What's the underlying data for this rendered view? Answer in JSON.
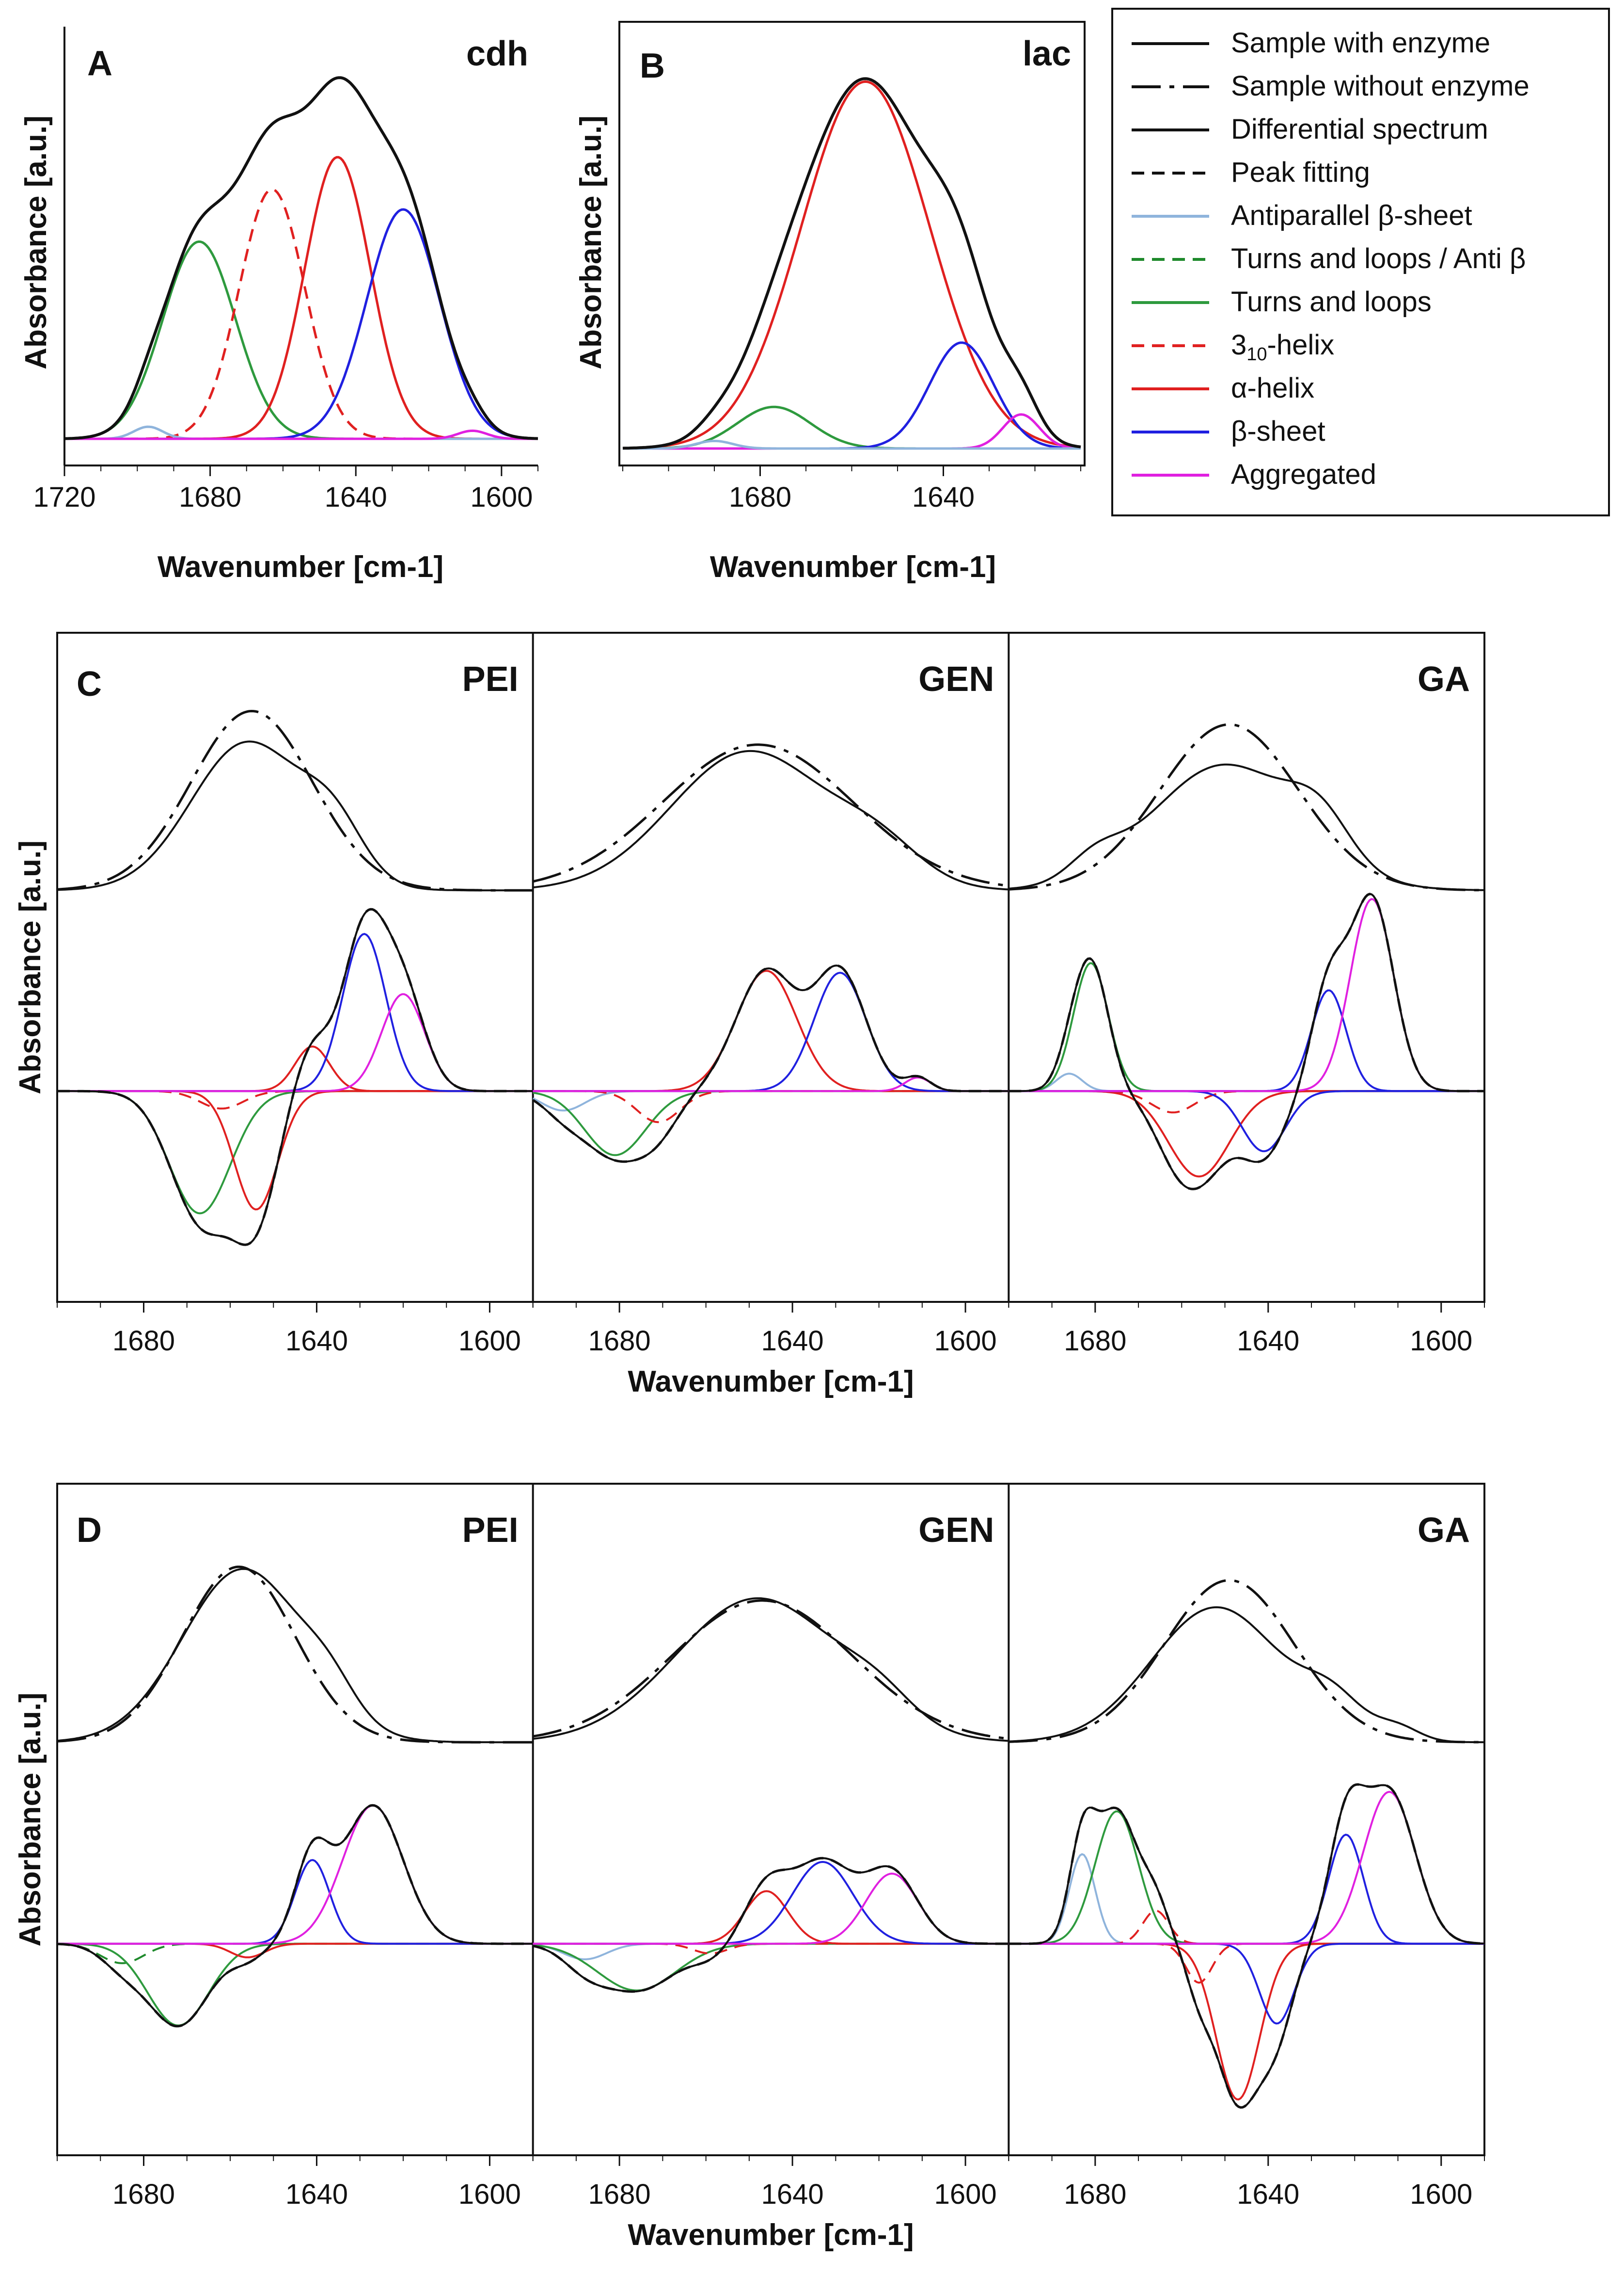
{
  "colors": {
    "antiparallel": "#8fb4dc",
    "turns_anti": "#1f8a2c",
    "turns": "#2e9a3e",
    "helix310": "#e02020",
    "alpha": "#e02020",
    "beta": "#2020e0",
    "aggregated": "#e020e0",
    "black": "#111111"
  },
  "legend": {
    "items": [
      {
        "label": "Sample with enzyme",
        "key": "sample_with",
        "color": "#111111",
        "dash": "solid"
      },
      {
        "label": "Sample without enzyme",
        "key": "sample_without",
        "color": "#111111",
        "dash": "longdash"
      },
      {
        "label": "Differential spectrum",
        "key": "differential",
        "color": "#111111",
        "dash": "solid"
      },
      {
        "label": "Peak fitting",
        "key": "fit",
        "color": "#111111",
        "dash": "dash"
      },
      {
        "label": "Antiparallel β-sheet",
        "key": "antiparallel",
        "color": "#8fb4dc",
        "dash": "solid"
      },
      {
        "label": "Turns and loops / Anti β",
        "key": "turns_anti",
        "color": "#1f8a2c",
        "dash": "dash"
      },
      {
        "label": "Turns and loops",
        "key": "turns",
        "color": "#2e9a3e",
        "dash": "solid"
      },
      {
        "label": "3",
        "sub": "10",
        "suffix": "-helix",
        "key": "helix310",
        "color": "#e02020",
        "dash": "dash"
      },
      {
        "label": "α-helix",
        "key": "alpha",
        "color": "#e02020",
        "dash": "solid"
      },
      {
        "label": "β-sheet",
        "key": "beta",
        "color": "#2020e0",
        "dash": "solid"
      },
      {
        "label": "Aggregated",
        "key": "aggregated",
        "color": "#e020e0",
        "dash": "solid"
      }
    ]
  },
  "chart_data": [
    {
      "panel": "A",
      "title": "cdh",
      "type": "line",
      "xlabel": "Wavenumber [cm-1]",
      "ylabel": "Absorbance [a.u.]",
      "xlim": [
        1720,
        1590
      ],
      "xticks": [
        1720,
        1680,
        1640,
        1600
      ],
      "series": [
        {
          "name": "Turns and loops",
          "key": "turns",
          "center": 1683,
          "height": 0.49,
          "width": 10
        },
        {
          "name": "3₁₀-helix",
          "key": "helix310",
          "center": 1663,
          "height": 0.62,
          "width": 9
        },
        {
          "name": "α-helix",
          "key": "alpha",
          "center": 1645,
          "height": 0.7,
          "width": 9
        },
        {
          "name": "β-sheet",
          "key": "beta",
          "center": 1627,
          "height": 0.57,
          "width": 10
        },
        {
          "name": "Antiparallel β-sheet",
          "key": "antiparallel",
          "center": 1697,
          "height": 0.03,
          "width": 4
        },
        {
          "name": "Aggregated",
          "key": "aggregated",
          "center": 1608,
          "height": 0.02,
          "width": 4
        }
      ]
    },
    {
      "panel": "B",
      "title": "lac",
      "type": "line",
      "xlabel": "Wavenumber [cm-1]",
      "ylabel": "Absorbance [a.u.]",
      "xlim": [
        1710,
        1610
      ],
      "xticks": [
        1680,
        1640
      ],
      "series": [
        {
          "name": "Turns and loops",
          "key": "turns",
          "center": 1677,
          "height": 0.11,
          "width": 8
        },
        {
          "name": "α-helix",
          "key": "alpha",
          "center": 1657,
          "height": 0.97,
          "width": 14
        },
        {
          "name": "β-sheet",
          "key": "beta",
          "center": 1636,
          "height": 0.28,
          "width": 7
        },
        {
          "name": "Aggregated",
          "key": "aggregated",
          "center": 1623,
          "height": 0.09,
          "width": 4
        },
        {
          "name": "Antiparallel β-sheet",
          "key": "antiparallel",
          "center": 1690,
          "height": 0.02,
          "width": 4
        }
      ]
    },
    {
      "panel": "C",
      "type": "line",
      "xlabel": "Wavenumber [cm-1]",
      "ylabel": "Absorbance [a.u.]",
      "xlim": [
        1700,
        1590
      ],
      "xticks": [
        1680,
        1640,
        1600
      ],
      "subpanels": [
        {
          "title": "PEI",
          "with_enzyme": [
            {
              "c": 1656,
              "h": 0.66,
              "w": 13
            },
            {
              "c": 1636,
              "h": 0.22,
              "w": 7
            }
          ],
          "without_enzyme": [
            {
              "c": 1655,
              "h": 0.8,
              "w": 14
            }
          ],
          "series": [
            {
              "name": "Turns and loops",
              "key": "turns",
              "center": 1667,
              "height": -0.63,
              "width": 7
            },
            {
              "name": "3₁₀-helix",
              "key": "helix310",
              "center": 1662,
              "height": -0.09,
              "width": 5
            },
            {
              "name": "α-helix",
              "key": "alpha",
              "center": 1641,
              "height": 0.23,
              "width": 4
            },
            {
              "name": "α-helix",
              "key": "alpha",
              "center": 1654,
              "height": -0.61,
              "width": 5
            },
            {
              "name": "β-sheet",
              "key": "beta",
              "center": 1629,
              "height": 0.81,
              "width": 5
            },
            {
              "name": "Aggregated",
              "key": "aggregated",
              "center": 1620,
              "height": 0.5,
              "width": 5
            }
          ]
        },
        {
          "title": "GEN",
          "with_enzyme": [
            {
              "c": 1650,
              "h": 0.62,
              "w": 18
            },
            {
              "c": 1620,
              "h": 0.15,
              "w": 10
            }
          ],
          "without_enzyme": [
            {
              "c": 1648,
              "h": 0.65,
              "w": 22
            }
          ],
          "series": [
            {
              "name": "Antiparallel β-sheet",
              "key": "antiparallel",
              "center": 1693,
              "height": -0.1,
              "width": 5
            },
            {
              "name": "Turns and loops",
              "key": "turns",
              "center": 1681,
              "height": -0.33,
              "width": 7
            },
            {
              "name": "3₁₀-helix",
              "key": "helix310",
              "center": 1671,
              "height": -0.16,
              "width": 5
            },
            {
              "name": "α-helix",
              "key": "alpha",
              "center": 1646,
              "height": 0.62,
              "width": 7
            },
            {
              "name": "β-sheet",
              "key": "beta",
              "center": 1629,
              "height": 0.61,
              "width": 6
            },
            {
              "name": "Aggregated",
              "key": "aggregated",
              "center": 1611,
              "height": 0.07,
              "width": 3
            }
          ]
        },
        {
          "title": "GA",
          "with_enzyme": [
            {
              "c": 1650,
              "h": 0.56,
              "w": 17
            },
            {
              "c": 1628,
              "h": 0.18,
              "w": 7
            },
            {
              "c": 1680,
              "h": 0.09,
              "w": 6
            }
          ],
          "without_enzyme": [
            {
              "c": 1649,
              "h": 0.74,
              "w": 16
            }
          ],
          "series": [
            {
              "name": "Antiparallel β-sheet",
              "key": "antiparallel",
              "center": 1686,
              "height": 0.09,
              "width": 3
            },
            {
              "name": "Turns and loops",
              "key": "turns",
              "center": 1681,
              "height": 0.66,
              "width": 4
            },
            {
              "name": "3₁₀-helix",
              "key": "helix310",
              "center": 1662,
              "height": -0.11,
              "width": 5
            },
            {
              "name": "α-helix",
              "key": "alpha",
              "center": 1656,
              "height": -0.44,
              "width": 7
            },
            {
              "name": "β-sheet",
              "key": "beta",
              "center": 1641,
              "height": -0.31,
              "width": 5
            },
            {
              "name": "β-sheet",
              "key": "beta",
              "center": 1626,
              "height": 0.52,
              "width": 4
            },
            {
              "name": "Aggregated",
              "key": "aggregated",
              "center": 1616,
              "height": 0.99,
              "width": 5
            }
          ]
        }
      ]
    },
    {
      "panel": "D",
      "type": "line",
      "xlabel": "Wavenumber [cm-1]",
      "ylabel": "Absorbance [a.u.]",
      "xlim": [
        1700,
        1590
      ],
      "xticks": [
        1680,
        1640,
        1600
      ],
      "subpanels": [
        {
          "title": "PEI",
          "with_enzyme": [
            {
              "c": 1657,
              "h": 0.77,
              "w": 14
            },
            {
              "c": 1637,
              "h": 0.12,
              "w": 6
            }
          ],
          "without_enzyme": [
            {
              "c": 1658,
              "h": 0.78,
              "w": 13
            }
          ],
          "series": [
            {
              "name": "Turns and loops / Anti β",
              "key": "turns_anti",
              "center": 1685,
              "height": -0.1,
              "width": 5
            },
            {
              "name": "Turns and loops",
              "key": "turns",
              "center": 1672,
              "height": -0.42,
              "width": 7
            },
            {
              "name": "α-helix",
              "key": "alpha",
              "center": 1656,
              "height": -0.07,
              "width": 4
            },
            {
              "name": "β-sheet",
              "key": "beta",
              "center": 1641,
              "height": 0.43,
              "width": 4
            },
            {
              "name": "Aggregated",
              "key": "aggregated",
              "center": 1627,
              "height": 0.71,
              "width": 7
            }
          ]
        },
        {
          "title": "GEN",
          "with_enzyme": [
            {
              "c": 1648,
              "h": 0.64,
              "w": 19
            },
            {
              "c": 1620,
              "h": 0.1,
              "w": 8
            }
          ],
          "without_enzyme": [
            {
              "c": 1647,
              "h": 0.63,
              "w": 21
            }
          ],
          "series": [
            {
              "name": "Antiparallel β-sheet",
              "key": "antiparallel",
              "center": 1688,
              "height": -0.08,
              "width": 5
            },
            {
              "name": "Turns and loops",
              "key": "turns",
              "center": 1676,
              "height": -0.24,
              "width": 9
            },
            {
              "name": "3₁₀-helix",
              "key": "helix310",
              "center": 1659,
              "height": -0.05,
              "width": 4
            },
            {
              "name": "α-helix",
              "key": "alpha",
              "center": 1646,
              "height": 0.27,
              "width": 5
            },
            {
              "name": "β-sheet",
              "key": "beta",
              "center": 1633,
              "height": 0.42,
              "width": 7
            },
            {
              "name": "Aggregated",
              "key": "aggregated",
              "center": 1617,
              "height": 0.36,
              "width": 6
            }
          ]
        },
        {
          "title": "GA",
          "with_enzyme": [
            {
              "c": 1652,
              "h": 0.6,
              "w": 15
            },
            {
              "c": 1625,
              "h": 0.15,
              "w": 7
            },
            {
              "c": 1610,
              "h": 0.06,
              "w": 5
            }
          ],
          "without_enzyme": [
            {
              "c": 1649,
              "h": 0.72,
              "w": 15
            }
          ],
          "series": [
            {
              "name": "Antiparallel β-sheet",
              "key": "antiparallel",
              "center": 1683,
              "height": 0.46,
              "width": 3
            },
            {
              "name": "Turns and loops",
              "key": "turns",
              "center": 1675,
              "height": 0.68,
              "width": 5
            },
            {
              "name": "3₁₀-helix",
              "key": "helix310",
              "center": 1666,
              "height": 0.17,
              "width": 3
            },
            {
              "name": "3₁₀-helix",
              "key": "helix310",
              "center": 1656,
              "height": -0.2,
              "width": 3
            },
            {
              "name": "α-helix",
              "key": "alpha",
              "center": 1647,
              "height": -0.8,
              "width": 5
            },
            {
              "name": "β-sheet",
              "key": "beta",
              "center": 1638,
              "height": -0.41,
              "width": 4
            },
            {
              "name": "β-sheet",
              "key": "beta",
              "center": 1622,
              "height": 0.56,
              "width": 4
            },
            {
              "name": "Aggregated",
              "key": "aggregated",
              "center": 1612,
              "height": 0.78,
              "width": 6
            }
          ]
        }
      ]
    }
  ]
}
